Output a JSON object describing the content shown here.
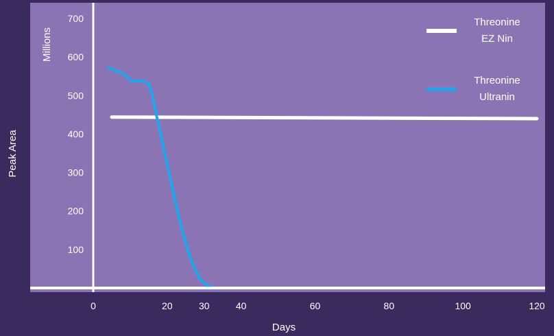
{
  "chart_data": {
    "type": "line",
    "xlabel": "Days",
    "ylabel": "Peak Area",
    "yunit_label": "Millions",
    "xlim": [
      -17,
      121
    ],
    "ylim": [
      0,
      730
    ],
    "x_ticks": [
      0,
      20,
      30,
      40,
      60,
      80,
      100,
      120
    ],
    "y_ticks": [
      100,
      200,
      300,
      400,
      500,
      600,
      700
    ],
    "grid": false,
    "legend_position": "top-right",
    "series": [
      {
        "name": "Threonine EZ Nin",
        "legend_lines": [
          "Threonine",
          "EZ Nin"
        ],
        "color": "#ffffff",
        "x": [
          5,
          120
        ],
        "y": [
          444,
          440
        ]
      },
      {
        "name": "Threonine Ultranin",
        "legend_lines": [
          "Threonine",
          "Ultranin"
        ],
        "color": "#1ca8ee",
        "x": [
          4,
          6,
          8,
          9,
          10,
          12,
          13,
          14,
          15,
          15.8,
          16.5,
          17.5,
          18.5,
          20,
          22,
          24,
          26,
          27.5,
          29,
          30.5,
          32,
          34,
          36,
          40,
          60,
          80
        ],
        "y": [
          573,
          565,
          558,
          550,
          540,
          538,
          538,
          537,
          530,
          505,
          475,
          430,
          385,
          320,
          230,
          150,
          85,
          48,
          22,
          9,
          3,
          0,
          0,
          0,
          0,
          0
        ]
      }
    ]
  },
  "colors": {
    "background": "#3b2a5e",
    "plot_area": "#8b74b3",
    "axis": "#ffffff"
  }
}
